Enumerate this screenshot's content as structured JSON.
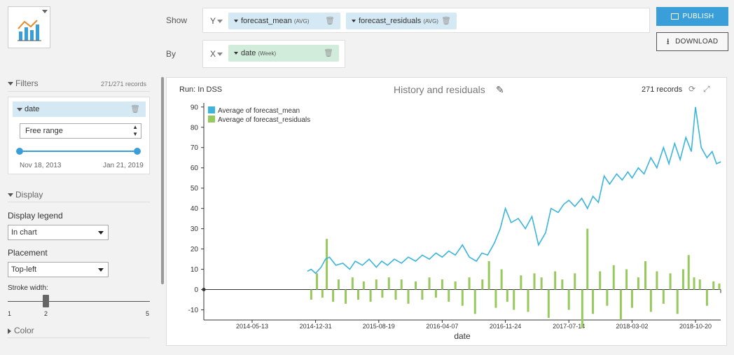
{
  "shelves": {
    "y_label": "Show",
    "x_label": "By",
    "y_axis_letter": "Y",
    "x_axis_letter": "X",
    "y_fields": [
      {
        "name": "forecast_mean",
        "agg": "(AVG)"
      },
      {
        "name": "forecast_residuals",
        "agg": "(AVG)"
      }
    ],
    "x_field": {
      "name": "date",
      "agg": "(Week)"
    }
  },
  "actions": {
    "publish": "PUBLISH",
    "download": "DOWNLOAD"
  },
  "filters": {
    "title": "Filters",
    "records": "271/271 records",
    "field": "date",
    "mode": "Free range",
    "from": "Nov 18, 2013",
    "to": "Jan 21, 2019"
  },
  "display": {
    "title": "Display",
    "legend_label": "Display legend",
    "legend_value": "In chart",
    "placement_label": "Placement",
    "placement_value": "Top-left",
    "stroke_label": "Stroke width:",
    "stroke_min": "1",
    "stroke_value": "2",
    "stroke_max": "5",
    "stroke_fraction": 0.25
  },
  "color": {
    "title": "Color"
  },
  "chart_header": {
    "run": "Run: In DSS",
    "title": "History and residuals",
    "records": "271 records"
  },
  "chart_data": {
    "type": "bar+line",
    "title": "History and residuals",
    "xlabel": "date",
    "ylabel": "",
    "ylim": [
      -15,
      92
    ],
    "yticks": [
      -10,
      0,
      10,
      20,
      30,
      40,
      50,
      60,
      70,
      80,
      90
    ],
    "xticks": [
      "2014-05-13",
      "2014-12-31",
      "2015-08-19",
      "2016-04-07",
      "2016-11-24",
      "2017-07-14",
      "2018-03-02",
      "2018-10-20"
    ],
    "legend": "top-left",
    "series": [
      {
        "name": "Average of forecast_mean",
        "type": "line",
        "color": "#3cb4dc",
        "points": [
          [
            "2014-12-01",
            9
          ],
          [
            "2014-12-15",
            10
          ],
          [
            "2014-12-31",
            8
          ],
          [
            "2015-01-20",
            11
          ],
          [
            "2015-02-05",
            15
          ],
          [
            "2015-02-20",
            16
          ],
          [
            "2015-03-15",
            12
          ],
          [
            "2015-04-10",
            13
          ],
          [
            "2015-05-05",
            10
          ],
          [
            "2015-05-25",
            14
          ],
          [
            "2015-06-20",
            12
          ],
          [
            "2015-07-15",
            15
          ],
          [
            "2015-08-10",
            11
          ],
          [
            "2015-08-30",
            14
          ],
          [
            "2015-09-20",
            12
          ],
          [
            "2015-10-15",
            15
          ],
          [
            "2015-11-10",
            13
          ],
          [
            "2015-12-05",
            16
          ],
          [
            "2016-01-01",
            14
          ],
          [
            "2016-01-25",
            17
          ],
          [
            "2016-02-20",
            15
          ],
          [
            "2016-03-15",
            18
          ],
          [
            "2016-04-07",
            16
          ],
          [
            "2016-05-01",
            19
          ],
          [
            "2016-05-25",
            17
          ],
          [
            "2016-06-20",
            22
          ],
          [
            "2016-07-15",
            16
          ],
          [
            "2016-08-10",
            14
          ],
          [
            "2016-08-30",
            18
          ],
          [
            "2016-09-20",
            17
          ],
          [
            "2016-10-15",
            23
          ],
          [
            "2016-11-05",
            30
          ],
          [
            "2016-11-24",
            40
          ],
          [
            "2016-12-15",
            33
          ],
          [
            "2017-01-10",
            35
          ],
          [
            "2017-02-05",
            30
          ],
          [
            "2017-03-01",
            36
          ],
          [
            "2017-03-25",
            22
          ],
          [
            "2017-04-20",
            28
          ],
          [
            "2017-05-10",
            40
          ],
          [
            "2017-06-05",
            38
          ],
          [
            "2017-06-25",
            42
          ],
          [
            "2017-07-14",
            44
          ],
          [
            "2017-08-05",
            41
          ],
          [
            "2017-08-30",
            45
          ],
          [
            "2017-09-20",
            40
          ],
          [
            "2017-10-10",
            46
          ],
          [
            "2017-10-30",
            43
          ],
          [
            "2017-11-20",
            56
          ],
          [
            "2017-12-10",
            52
          ],
          [
            "2018-01-05",
            57
          ],
          [
            "2018-01-25",
            54
          ],
          [
            "2018-02-15",
            58
          ],
          [
            "2018-03-02",
            55
          ],
          [
            "2018-03-25",
            60
          ],
          [
            "2018-04-15",
            57
          ],
          [
            "2018-05-10",
            65
          ],
          [
            "2018-06-01",
            60
          ],
          [
            "2018-06-25",
            70
          ],
          [
            "2018-07-15",
            62
          ],
          [
            "2018-08-05",
            72
          ],
          [
            "2018-08-25",
            64
          ],
          [
            "2018-09-15",
            75
          ],
          [
            "2018-10-05",
            68
          ],
          [
            "2018-10-20",
            90
          ],
          [
            "2018-11-10",
            70
          ],
          [
            "2018-12-01",
            65
          ],
          [
            "2018-12-20",
            68
          ],
          [
            "2019-01-05",
            62
          ],
          [
            "2019-01-21",
            63
          ]
        ]
      },
      {
        "name": "Average of forecast_residuals",
        "type": "bar",
        "color": "#97c95c",
        "points": [
          [
            "2014-12-15",
            -5
          ],
          [
            "2015-01-05",
            8
          ],
          [
            "2015-01-25",
            -4
          ],
          [
            "2015-02-10",
            25
          ],
          [
            "2015-03-05",
            -6
          ],
          [
            "2015-03-25",
            5
          ],
          [
            "2015-04-20",
            -7
          ],
          [
            "2015-05-15",
            6
          ],
          [
            "2015-06-05",
            -5
          ],
          [
            "2015-06-25",
            4
          ],
          [
            "2015-07-20",
            -6
          ],
          [
            "2015-08-10",
            5
          ],
          [
            "2015-09-01",
            -4
          ],
          [
            "2015-09-25",
            6
          ],
          [
            "2015-10-20",
            -5
          ],
          [
            "2015-11-10",
            5
          ],
          [
            "2015-12-05",
            -7
          ],
          [
            "2016-01-01",
            4
          ],
          [
            "2016-01-25",
            -5
          ],
          [
            "2016-02-20",
            6
          ],
          [
            "2016-03-15",
            -4
          ],
          [
            "2016-04-07",
            5
          ],
          [
            "2016-05-01",
            -6
          ],
          [
            "2016-05-25",
            4
          ],
          [
            "2016-06-20",
            -8
          ],
          [
            "2016-07-15",
            6
          ],
          [
            "2016-08-05",
            -12
          ],
          [
            "2016-09-01",
            5
          ],
          [
            "2016-09-25",
            14
          ],
          [
            "2016-10-20",
            -9
          ],
          [
            "2016-11-10",
            10
          ],
          [
            "2016-12-01",
            -6
          ],
          [
            "2016-12-25",
            -10
          ],
          [
            "2017-01-20",
            7
          ],
          [
            "2017-02-15",
            -11
          ],
          [
            "2017-03-10",
            8
          ],
          [
            "2017-04-05",
            6
          ],
          [
            "2017-05-01",
            -14
          ],
          [
            "2017-05-25",
            9
          ],
          [
            "2017-06-20",
            5
          ],
          [
            "2017-07-14",
            -10
          ],
          [
            "2017-08-05",
            8
          ],
          [
            "2017-09-01",
            -19
          ],
          [
            "2017-09-20",
            30
          ],
          [
            "2017-10-10",
            -12
          ],
          [
            "2017-11-05",
            9
          ],
          [
            "2017-12-01",
            -8
          ],
          [
            "2017-12-25",
            12
          ],
          [
            "2018-01-20",
            -15
          ],
          [
            "2018-02-10",
            10
          ],
          [
            "2018-03-02",
            -9
          ],
          [
            "2018-03-25",
            6
          ],
          [
            "2018-04-20",
            14
          ],
          [
            "2018-05-10",
            -11
          ],
          [
            "2018-06-01",
            9
          ],
          [
            "2018-06-25",
            -7
          ],
          [
            "2018-07-20",
            8
          ],
          [
            "2018-08-15",
            -12
          ],
          [
            "2018-09-05",
            10
          ],
          [
            "2018-09-25",
            17
          ],
          [
            "2018-10-15",
            6
          ],
          [
            "2018-11-05",
            5
          ],
          [
            "2018-12-01",
            -8
          ],
          [
            "2018-12-25",
            4
          ],
          [
            "2019-01-15",
            3
          ]
        ]
      }
    ]
  },
  "colors": {
    "accent": "#3a9fd8",
    "line": "#3cb4dc",
    "bar": "#97c95c"
  },
  "icons": [
    "chart-type-icon",
    "trash-icon",
    "publish-icon",
    "download-icon",
    "pencil-icon",
    "refresh-icon",
    "expand-icon"
  ]
}
